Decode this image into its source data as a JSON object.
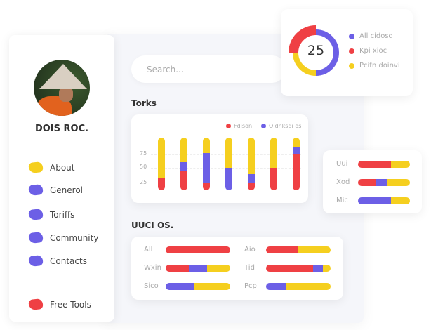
{
  "colors": {
    "red": "#ef4044",
    "purple": "#6c5fe6",
    "yellow": "#f5cf1f"
  },
  "profile": {
    "name": "DOIS ROC."
  },
  "nav": [
    {
      "label": "About",
      "color": "#f5cf1f"
    },
    {
      "label": "Generol",
      "color": "#6c5fe6"
    },
    {
      "label": "Toriffs",
      "color": "#6c5fe6"
    },
    {
      "label": "Community",
      "color": "#6c5fe6"
    },
    {
      "label": "Contacts",
      "color": "#6c5fe6"
    },
    {
      "label": "Free Tools",
      "color": "#ef4044"
    }
  ],
  "search": {
    "placeholder": "Search..."
  },
  "donut": {
    "value": "25",
    "segments": [
      {
        "label": "All cidosd",
        "color": "#6c5fe6",
        "fraction": 0.5
      },
      {
        "label": "Pcifn doinvi",
        "color": "#f5cf1f",
        "fraction": 0.25
      },
      {
        "label": "Kpi xioc",
        "color": "#ef4044",
        "fraction": 0.25
      }
    ],
    "legend": [
      {
        "label": "All cidosd",
        "color": "#6c5fe6"
      },
      {
        "label": "Kpi xioc",
        "color": "#ef4044"
      },
      {
        "label": "Pcifn doinvi",
        "color": "#f5cf1f"
      }
    ]
  },
  "chart_data": {
    "type": "bar",
    "title": "Torks",
    "stacked": true,
    "legend": [
      {
        "name": "Fdison",
        "color": "#ef4044"
      },
      {
        "name": "Oidnksdi os",
        "color": "#6c5fe6"
      }
    ],
    "yticks": [
      "75",
      "50",
      "25"
    ],
    "series": [
      {
        "name": "Fdison",
        "values": [
          23,
          36,
          15,
          0,
          15,
          43,
          68
        ]
      },
      {
        "name": "Oidnksdi os",
        "values": [
          0,
          18,
          56,
          43,
          16,
          0,
          15
        ]
      },
      {
        "values": [
          77,
          46,
          29,
          57,
          69,
          57,
          17
        ]
      }
    ]
  },
  "section2": {
    "title": "UUCI OS.",
    "rows": [
      {
        "label": "All",
        "parts": [
          100,
          0,
          0
        ]
      },
      {
        "label": "Wxin",
        "parts": [
          36,
          28,
          36
        ]
      },
      {
        "label": "Sico",
        "parts": [
          0,
          43,
          57
        ]
      },
      {
        "label": "Aio",
        "parts": [
          50,
          0,
          50
        ]
      },
      {
        "label": "Tid",
        "parts": [
          73,
          15,
          12
        ]
      },
      {
        "label": "Pcp",
        "parts": [
          0,
          31,
          69
        ]
      }
    ]
  },
  "side_card": {
    "rows": [
      {
        "label": "Uui",
        "parts": [
          64,
          0,
          36
        ]
      },
      {
        "label": "Xod",
        "parts": [
          35,
          22,
          43
        ]
      },
      {
        "label": "Mic",
        "parts": [
          0,
          64,
          36
        ]
      }
    ]
  }
}
